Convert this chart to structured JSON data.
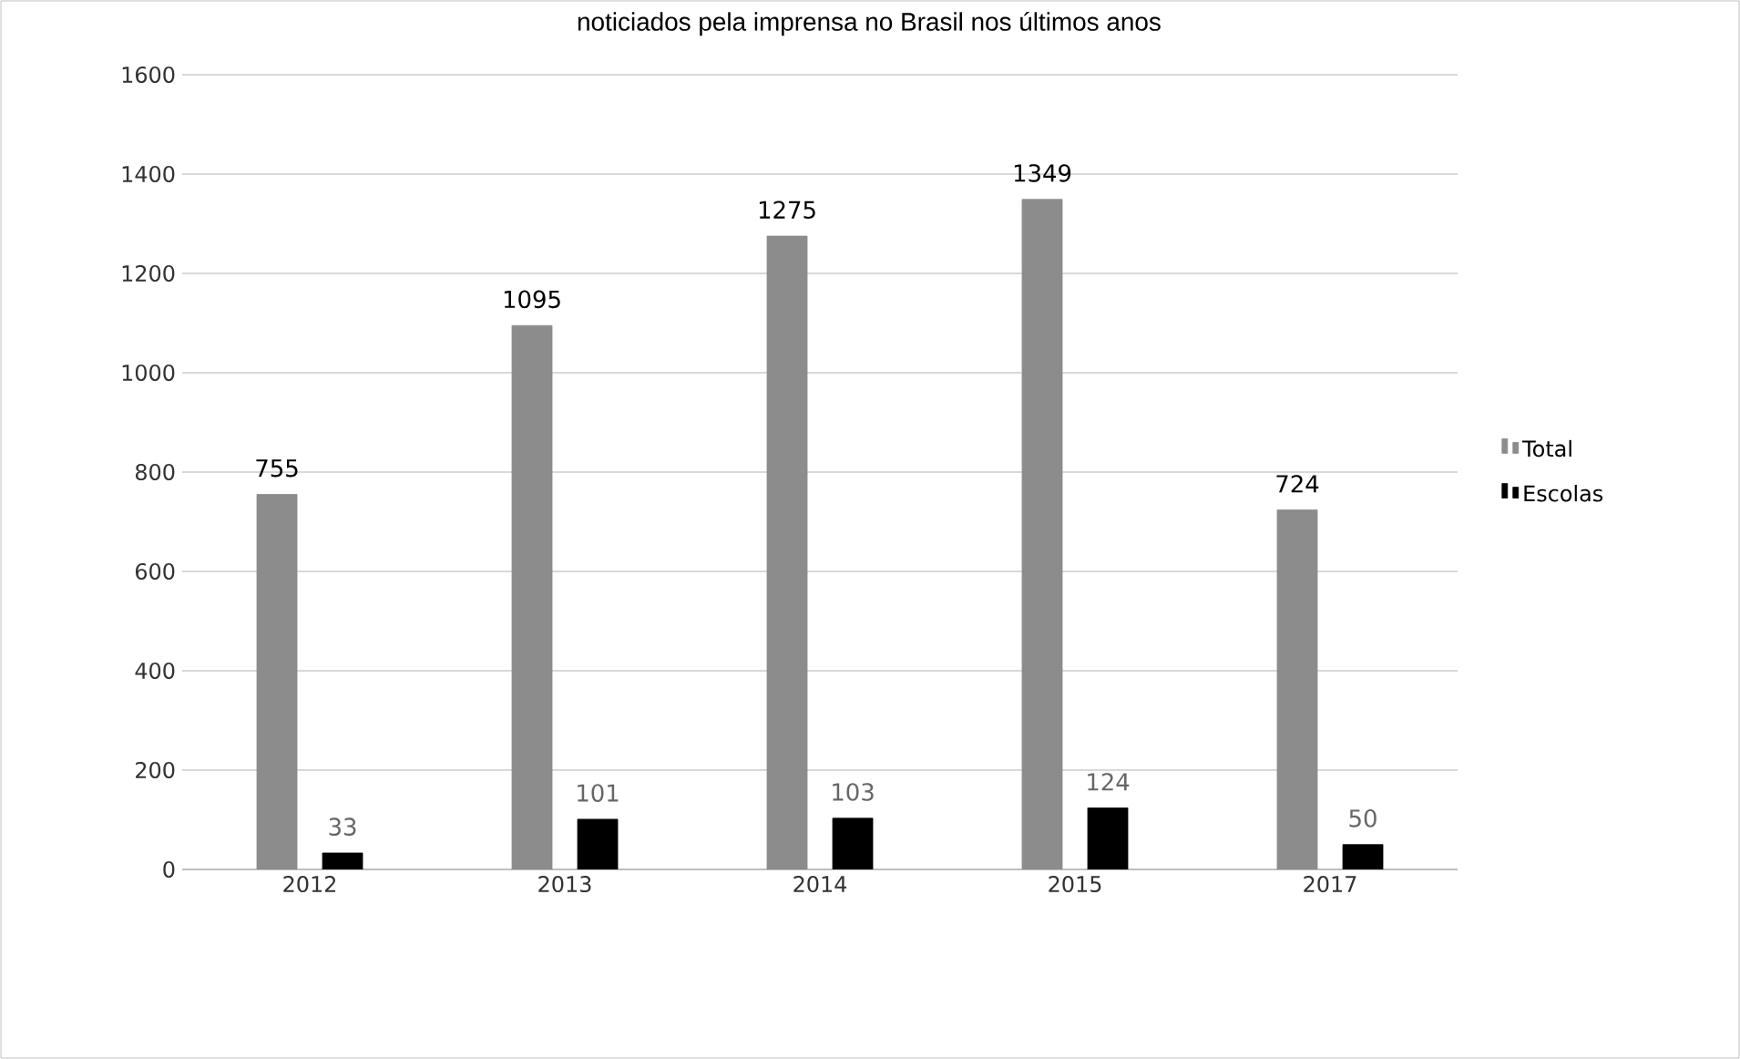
{
  "chart_data": {
    "type": "bar",
    "title": "noticiados pela imprensa no Brasil nos últimos anos",
    "categories": [
      "2012",
      "2013",
      "2014",
      "2015",
      "2017"
    ],
    "series": [
      {
        "name": "Total",
        "color": "#8c8c8c",
        "values": [
          755,
          1095,
          1275,
          1349,
          724
        ]
      },
      {
        "name": "Escolas",
        "color": "#000000",
        "values": [
          33,
          101,
          103,
          124,
          50
        ]
      }
    ],
    "ylim": [
      0,
      1600
    ],
    "yticks": [
      0,
      200,
      400,
      600,
      800,
      1000,
      1200,
      1400,
      1600
    ],
    "grid": "y",
    "legend": "right",
    "data_labels": true
  }
}
